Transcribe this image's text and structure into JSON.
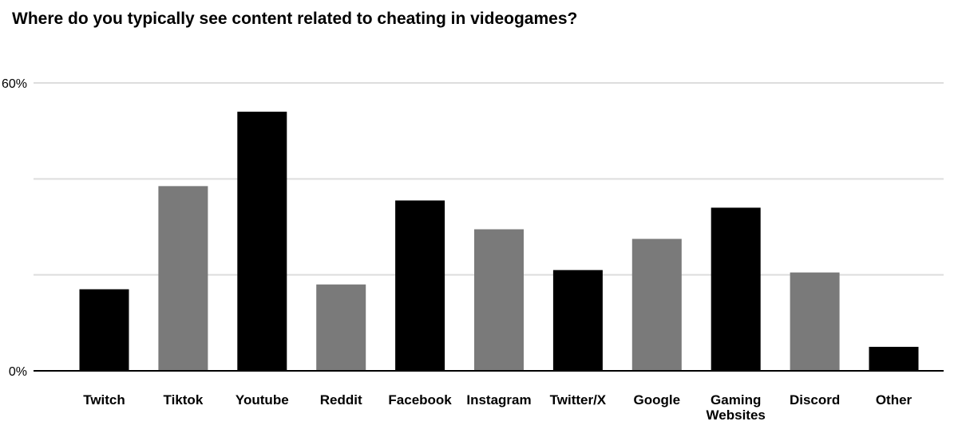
{
  "chart_data": {
    "type": "bar",
    "title": "Where do you typically see content related to cheating in videogames?",
    "categories": [
      "Twitch",
      "Tiktok",
      "Youtube",
      "Reddit",
      "Facebook",
      "Instagram",
      "Twitter/X",
      "Google",
      "Gaming Websites",
      "Discord",
      "Other"
    ],
    "values": [
      17,
      38.5,
      54,
      18,
      35.5,
      29.5,
      21,
      27.5,
      34,
      20.5,
      5
    ],
    "bar_colors": [
      "#000000",
      "#7a7a7a",
      "#000000",
      "#7a7a7a",
      "#000000",
      "#7a7a7a",
      "#000000",
      "#7a7a7a",
      "#000000",
      "#7a7a7a",
      "#000000"
    ],
    "ylim": [
      0,
      60
    ],
    "y_ticks": [
      {
        "value": 0,
        "label": "0%"
      },
      {
        "value": 20,
        "label": ""
      },
      {
        "value": 40,
        "label": ""
      },
      {
        "value": 60,
        "label": "60%"
      }
    ],
    "xlabel": "",
    "ylabel": "",
    "grid": true,
    "gridline_color": "#dddddd",
    "axis_color": "#000000"
  }
}
